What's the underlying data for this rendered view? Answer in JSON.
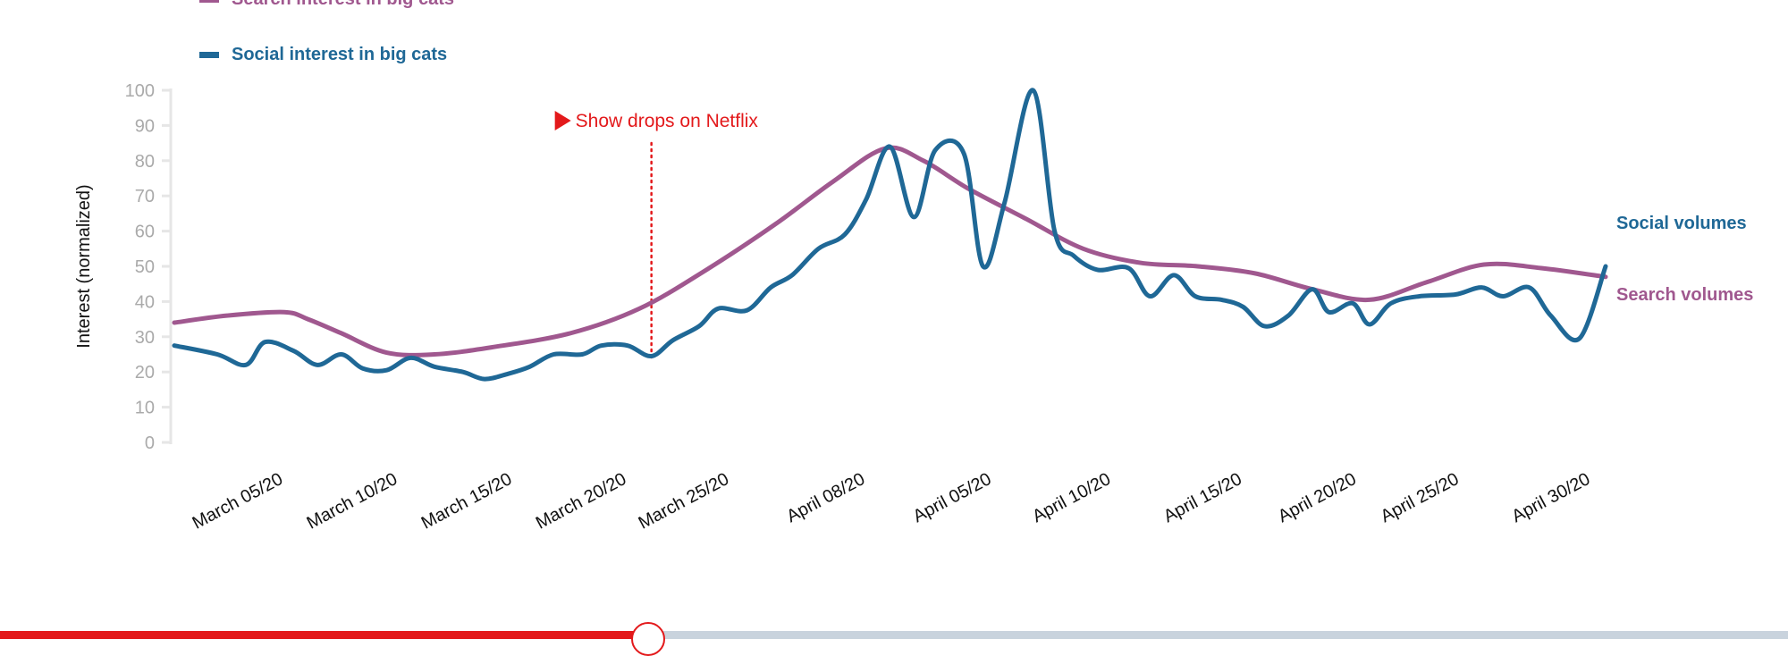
{
  "chart_data": {
    "type": "line",
    "title": "",
    "xlabel": "",
    "ylabel": "Interest (normalized)",
    "ylim": [
      0,
      100
    ],
    "xlim": [
      0,
      60
    ],
    "yticks": [
      0,
      10,
      20,
      30,
      40,
      50,
      60,
      70,
      80,
      90,
      100
    ],
    "xtick_labels": [
      {
        "label": "March 05/20",
        "x": 4.6
      },
      {
        "label": "March 10/20",
        "x": 9.4
      },
      {
        "label": "March 15/20",
        "x": 14.2
      },
      {
        "label": "March 20/20",
        "x": 19
      },
      {
        "label": "March 25/20",
        "x": 23.3
      },
      {
        "label": "April 08/20",
        "x": 29
      },
      {
        "label": "April 05/20",
        "x": 34.3
      },
      {
        "label": "April 10/20",
        "x": 39.3
      },
      {
        "label": "April 15/20",
        "x": 44.8
      },
      {
        "label": "April 20/20",
        "x": 49.6
      },
      {
        "label": "April 25/20",
        "x": 53.9
      },
      {
        "label": "April 30/20",
        "x": 59.4
      }
    ],
    "legend": [
      {
        "name": "Search interest in big cats",
        "color": "#a0588f"
      },
      {
        "name": "Social interest in big cats",
        "color": "#1f6896"
      }
    ],
    "series": [
      {
        "name": "Search interest in big cats",
        "end_label": "Search volumes",
        "color": "#a0588f",
        "points": [
          [
            0,
            34
          ],
          [
            2.2,
            36
          ],
          [
            4.6,
            37
          ],
          [
            5.6,
            35
          ],
          [
            7,
            31
          ],
          [
            8.9,
            25.5
          ],
          [
            10.9,
            25
          ],
          [
            13.3,
            27
          ],
          [
            16.6,
            31
          ],
          [
            19.5,
            38
          ],
          [
            22.3,
            49
          ],
          [
            25.2,
            62
          ],
          [
            27.6,
            74
          ],
          [
            29.8,
            83.5
          ],
          [
            31.4,
            80
          ],
          [
            33.3,
            72
          ],
          [
            35.7,
            63.5
          ],
          [
            38.1,
            55
          ],
          [
            40.5,
            51
          ],
          [
            42.9,
            50
          ],
          [
            45.3,
            48
          ],
          [
            47.7,
            43.5
          ],
          [
            50.1,
            40.5
          ],
          [
            52.5,
            45.5
          ],
          [
            54.9,
            50.5
          ],
          [
            57.3,
            49.5
          ],
          [
            60,
            47
          ]
        ]
      },
      {
        "name": "Social interest in big cats",
        "end_label": "Social volumes",
        "color": "#1f6896",
        "points": [
          [
            0,
            27.5
          ],
          [
            1.8,
            25
          ],
          [
            3,
            22
          ],
          [
            3.8,
            28.5
          ],
          [
            5,
            26
          ],
          [
            6,
            22
          ],
          [
            7,
            25
          ],
          [
            7.9,
            21
          ],
          [
            8.9,
            20.5
          ],
          [
            9.9,
            24
          ],
          [
            10.9,
            21.5
          ],
          [
            12.1,
            20
          ],
          [
            13,
            18
          ],
          [
            14,
            19.5
          ],
          [
            14.9,
            21.5
          ],
          [
            15.9,
            25
          ],
          [
            17.1,
            25
          ],
          [
            17.9,
            27.5
          ],
          [
            19,
            27.5
          ],
          [
            20,
            24.5
          ],
          [
            20.9,
            29
          ],
          [
            22,
            33
          ],
          [
            22.8,
            38
          ],
          [
            24,
            37.5
          ],
          [
            25,
            44
          ],
          [
            25.9,
            47.5
          ],
          [
            27,
            55
          ],
          [
            28.1,
            59
          ],
          [
            29,
            69
          ],
          [
            30,
            84
          ],
          [
            31,
            64
          ],
          [
            31.9,
            83
          ],
          [
            33.1,
            82
          ],
          [
            33.9,
            50
          ],
          [
            34.8,
            68
          ],
          [
            36,
            100
          ],
          [
            36.9,
            60
          ],
          [
            37.7,
            53
          ],
          [
            38.7,
            49
          ],
          [
            40,
            49.5
          ],
          [
            40.9,
            41.5
          ],
          [
            41.9,
            47.5
          ],
          [
            42.8,
            41.5
          ],
          [
            43.9,
            40.5
          ],
          [
            44.8,
            38.5
          ],
          [
            45.7,
            33
          ],
          [
            46.7,
            36
          ],
          [
            47.7,
            43.5
          ],
          [
            48.4,
            37
          ],
          [
            49.4,
            39.5
          ],
          [
            50.1,
            33.5
          ],
          [
            51,
            39.5
          ],
          [
            52.2,
            41.5
          ],
          [
            53.7,
            42
          ],
          [
            54.8,
            44
          ],
          [
            55.7,
            41.5
          ],
          [
            56.8,
            44
          ],
          [
            57.7,
            36
          ],
          [
            58.9,
            29.5
          ],
          [
            60,
            50
          ]
        ]
      }
    ],
    "annotations": [
      {
        "x": 20,
        "label": "Show drops on Netflix",
        "color": "#e3191b"
      }
    ],
    "grid": false
  }
}
